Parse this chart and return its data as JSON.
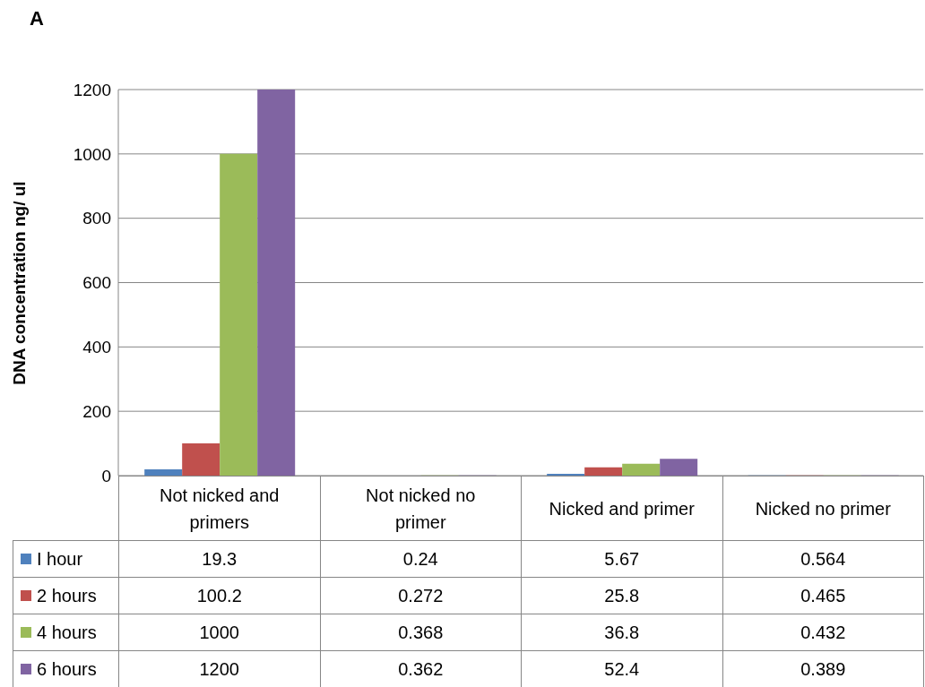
{
  "chart_data": {
    "type": "bar",
    "annotations": [
      "A"
    ],
    "ylabel": "DNA concentration  ng/ ul",
    "categories": [
      "Not nicked and primers",
      "Not nicked no primer",
      "Nicked and primer",
      "Nicked no primer"
    ],
    "series": [
      {
        "name": "I hour",
        "color": "#4f81bd",
        "values": [
          19.3,
          0.24,
          5.67,
          0.564
        ]
      },
      {
        "name": "2 hours",
        "color": "#c0504d",
        "values": [
          100.2,
          0.272,
          25.8,
          0.465
        ]
      },
      {
        "name": "4 hours",
        "color": "#9bbb59",
        "values": [
          1000,
          0.368,
          36.8,
          0.432
        ]
      },
      {
        "name": "6 hours",
        "color": "#8064a2",
        "values": [
          1200,
          0.362,
          52.4,
          0.389
        ]
      }
    ],
    "ylim": [
      0,
      1200
    ],
    "yticks": [
      0,
      200,
      400,
      600,
      800,
      1000,
      1200
    ],
    "grid": "y",
    "legend": "bottom left",
    "data_labels": true
  }
}
